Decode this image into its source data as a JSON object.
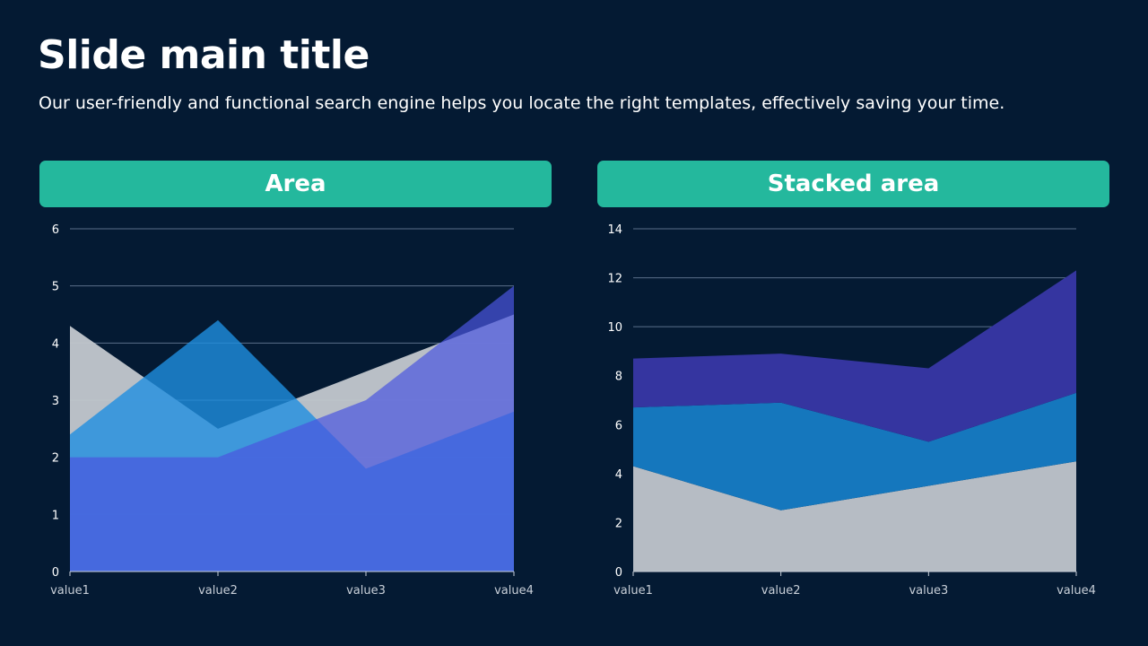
{
  "slide": {
    "title": "Slide main title",
    "subtitle": "Our user-friendly and functional search engine helps you locate the right templates, effectively saving your time."
  },
  "panels": {
    "left_header": "Area",
    "right_header": "Stacked area"
  },
  "colors": {
    "background": "#041a33",
    "header": "#24b89d",
    "grid": "#5a6f8a",
    "series_gray": "#c3c8cf",
    "series_blue": "#1f8fe0",
    "series_indigo": "#3a3fd0",
    "series_purple": "#6b62d6"
  },
  "chart_data": [
    {
      "type": "area",
      "title": "Area",
      "categories": [
        "value1",
        "value2",
        "value3",
        "value4"
      ],
      "ylim": [
        0,
        6
      ],
      "yticks": [
        0,
        1,
        2,
        3,
        4,
        5,
        6
      ],
      "grid": true,
      "series": [
        {
          "values": [
            4.3,
            2.5,
            3.5,
            4.5
          ],
          "color": "#c3c8cf",
          "opacity": 0.95
        },
        {
          "values": [
            2.4,
            4.4,
            1.8,
            2.8
          ],
          "color": "#1f8fe0",
          "opacity": 0.8
        },
        {
          "values": [
            2.0,
            2.0,
            3.0,
            5.0
          ],
          "color": "#4a55e0",
          "opacity": 0.7
        }
      ]
    },
    {
      "type": "area",
      "stacked": true,
      "title": "Stacked area",
      "categories": [
        "value1",
        "value2",
        "value3",
        "value4"
      ],
      "ylim": [
        0,
        14
      ],
      "yticks": [
        0,
        2,
        4,
        6,
        8,
        10,
        12,
        14
      ],
      "grid": true,
      "series": [
        {
          "values": [
            4.3,
            2.5,
            3.5,
            4.5
          ],
          "color": "#b6bcc4"
        },
        {
          "values": [
            2.4,
            4.4,
            1.8,
            2.8
          ],
          "color": "#1577bd"
        },
        {
          "values": [
            2.0,
            2.0,
            3.0,
            5.0
          ],
          "color": "#3535a0"
        }
      ]
    }
  ]
}
